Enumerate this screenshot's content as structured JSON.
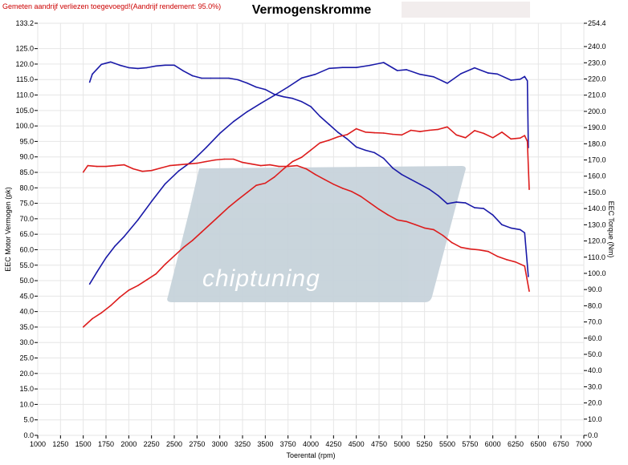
{
  "header": {
    "note": "Gemeten aandrijf verliezen toegevoegd!(Aandrijf rendement: 95.0%)"
  },
  "watermark": {
    "text": "chiptuning",
    "color": "#c7d3db"
  },
  "chart_data": {
    "type": "line",
    "title": "Vermogenskromme",
    "xlabel": "Toerental (rpm)",
    "ylabel_left": "EEC Motor Vermogen (pk)",
    "ylabel_right": "EEC Torque (Nm)",
    "xlim": [
      1000,
      7000
    ],
    "ylim_left": [
      0.0,
      133.2
    ],
    "ylim_right": [
      0.0,
      254.4
    ],
    "x_ticks": [
      "1000",
      "1250",
      "1500",
      "1750",
      "2000",
      "2250",
      "2500",
      "2750",
      "3000",
      "3250",
      "3500",
      "3750",
      "4000",
      "4250",
      "4500",
      "4750",
      "5000",
      "5250",
      "5500",
      "5750",
      "6000",
      "6250",
      "6500",
      "6750",
      "7000"
    ],
    "y_left_ticks": [
      "133.2",
      "125.0",
      "120.0",
      "115.0",
      "110.0",
      "105.0",
      "100.0",
      "95.0",
      "90.0",
      "85.0",
      "80.0",
      "75.0",
      "70.0",
      "65.0",
      "60.0",
      "55.0",
      "50.0",
      "45.0",
      "40.0",
      "35.0",
      "30.0",
      "25.0",
      "20.0",
      "15.0",
      "10.0",
      "5.0",
      "0.0"
    ],
    "y_right_ticks": [
      "254.4",
      "240.0",
      "230.0",
      "220.0",
      "210.0",
      "200.0",
      "190.0",
      "180.0",
      "170.0",
      "160.0",
      "150.0",
      "140.0",
      "130.0",
      "120.0",
      "110.0",
      "100.0",
      "90.0",
      "80.0",
      "70.0",
      "60.0",
      "50.0",
      "40.0",
      "30.0",
      "20.0",
      "10.0",
      "0.0"
    ],
    "grid": true,
    "series": [
      {
        "color": "#1a1aa8",
        "axis": "left",
        "x": [
          1570,
          1650,
          1750,
          1850,
          1950,
          2100,
          2250,
          2400,
          2550,
          2700,
          2850,
          3000,
          3150,
          3300,
          3450,
          3600,
          3750,
          3900,
          4050,
          4200,
          4350,
          4500,
          4650,
          4800,
          4950,
          5050,
          5200,
          5350,
          5500,
          5650,
          5800,
          5950,
          6050,
          6200,
          6300,
          6350,
          6380,
          6390
        ],
        "y": [
          48.9,
          52.8,
          57.4,
          61.2,
          64.3,
          69.6,
          75.6,
          81.3,
          85.5,
          88.7,
          93.0,
          97.6,
          101.4,
          104.6,
          107.3,
          109.9,
          112.6,
          115.5,
          116.7,
          118.6,
          118.9,
          118.9,
          119.6,
          120.5,
          117.9,
          118.2,
          116.7,
          115.9,
          113.8,
          116.9,
          118.8,
          117.1,
          116.8,
          114.8,
          115.1,
          116.0,
          114.6,
          93.0
        ]
      },
      {
        "color": "#1a1aa8",
        "axis": "right",
        "x": [
          1570,
          1600,
          1700,
          1800,
          1900,
          2000,
          2100,
          2200,
          2300,
          2400,
          2500,
          2600,
          2700,
          2800,
          2900,
          3000,
          3100,
          3200,
          3300,
          3400,
          3500,
          3600,
          3700,
          3800,
          3900,
          4000,
          4100,
          4200,
          4300,
          4400,
          4500,
          4600,
          4700,
          4800,
          4900,
          5000,
          5100,
          5200,
          5300,
          5400,
          5500,
          5600,
          5700,
          5800,
          5900,
          6000,
          6100,
          6200,
          6300,
          6350,
          6390
        ],
        "y": [
          218.0,
          223.0,
          229.0,
          230.5,
          228.5,
          227.0,
          226.5,
          227.0,
          228.0,
          228.5,
          228.5,
          225.0,
          222.0,
          220.5,
          220.5,
          220.5,
          220.5,
          219.5,
          217.5,
          215.0,
          213.5,
          210.5,
          209.0,
          208.0,
          206.0,
          203.0,
          197.0,
          192.0,
          187.0,
          183.0,
          178.0,
          176.0,
          174.5,
          171.0,
          165.0,
          161.0,
          158.0,
          155.0,
          152.0,
          148.0,
          143.0,
          144.0,
          143.5,
          140.5,
          140.0,
          136.0,
          130.0,
          128.0,
          127.0,
          125.0,
          98.0
        ]
      },
      {
        "color": "#dd1c1c",
        "axis": "left",
        "x": [
          1500,
          1600,
          1700,
          1800,
          1900,
          2000,
          2100,
          2200,
          2300,
          2400,
          2500,
          2600,
          2700,
          2800,
          2900,
          3000,
          3100,
          3200,
          3300,
          3400,
          3500,
          3600,
          3700,
          3800,
          3900,
          4000,
          4100,
          4200,
          4300,
          4400,
          4500,
          4600,
          4700,
          4800,
          4900,
          5000,
          5100,
          5200,
          5300,
          5400,
          5500,
          5600,
          5700,
          5800,
          5900,
          6000,
          6100,
          6200,
          6300,
          6350,
          6380,
          6400
        ],
        "y": [
          35.0,
          37.7,
          39.6,
          41.9,
          44.6,
          46.9,
          48.4,
          50.3,
          52.2,
          55.3,
          58.0,
          60.7,
          63.0,
          65.7,
          68.4,
          71.1,
          73.8,
          76.2,
          78.5,
          80.8,
          81.5,
          83.5,
          86.1,
          88.5,
          89.9,
          92.2,
          94.5,
          95.4,
          96.5,
          97.2,
          99.1,
          98.0,
          97.8,
          97.7,
          97.3,
          97.1,
          98.6,
          98.2,
          98.6,
          98.9,
          99.7,
          97.1,
          96.2,
          98.5,
          97.6,
          96.2,
          98.0,
          95.8,
          96.1,
          96.9,
          95.0,
          79.5
        ]
      },
      {
        "color": "#dd1c1c",
        "axis": "right",
        "x": [
          1500,
          1550,
          1650,
          1750,
          1850,
          1950,
          2050,
          2150,
          2250,
          2350,
          2450,
          2550,
          2650,
          2750,
          2850,
          2950,
          3050,
          3150,
          3250,
          3350,
          3450,
          3550,
          3650,
          3750,
          3850,
          3950,
          4050,
          4150,
          4250,
          4350,
          4450,
          4550,
          4650,
          4750,
          4850,
          4950,
          5050,
          5150,
          5250,
          5350,
          5450,
          5550,
          5650,
          5750,
          5850,
          5950,
          6050,
          6150,
          6250,
          6350,
          6400
        ],
        "y": [
          162.5,
          166.5,
          166.0,
          166.0,
          166.5,
          167.0,
          164.5,
          163.0,
          163.5,
          165.0,
          166.5,
          167.0,
          167.5,
          168.0,
          169.0,
          170.0,
          170.5,
          170.5,
          168.5,
          167.5,
          166.5,
          167.0,
          166.0,
          166.0,
          166.5,
          164.5,
          161.0,
          158.0,
          155.0,
          152.5,
          150.5,
          147.5,
          143.5,
          139.5,
          136.0,
          133.0,
          132.0,
          130.0,
          128.0,
          127.0,
          123.5,
          119.0,
          116.0,
          115.0,
          114.5,
          113.5,
          110.5,
          108.5,
          107.0,
          104.5,
          89.0
        ]
      }
    ]
  }
}
